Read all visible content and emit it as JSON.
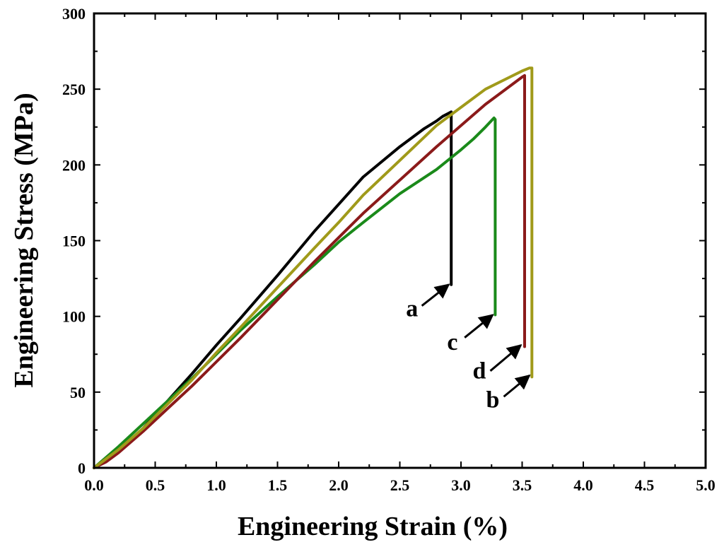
{
  "chart_data": {
    "type": "line",
    "title": "",
    "xlabel": "Engineering Strain (%)",
    "ylabel": "Engineering Stress (MPa)",
    "xlim": [
      0,
      5
    ],
    "ylim": [
      0,
      300
    ],
    "x_ticks": [
      0,
      0.5,
      1,
      1.5,
      2,
      2.5,
      3,
      3.5,
      4,
      4.5,
      5
    ],
    "x_tick_labels": [
      "0.0",
      "0.5",
      "1.0",
      "1.5",
      "2.0",
      "2.5",
      "3.0",
      "3.5",
      "4.0",
      "4.5",
      "5.0"
    ],
    "y_ticks": [
      0,
      50,
      100,
      150,
      200,
      250,
      300
    ],
    "y_tick_labels": [
      "0",
      "50",
      "100",
      "150",
      "200",
      "250",
      "300"
    ],
    "grid": false,
    "legend": "none",
    "series": [
      {
        "name": "a",
        "color": "#000000",
        "points": [
          [
            0,
            0
          ],
          [
            0.1,
            5
          ],
          [
            0.2,
            11
          ],
          [
            0.4,
            26
          ],
          [
            0.6,
            44
          ],
          [
            0.8,
            62
          ],
          [
            1.0,
            81
          ],
          [
            1.2,
            99
          ],
          [
            1.5,
            127
          ],
          [
            1.8,
            156
          ],
          [
            2.0,
            174
          ],
          [
            2.2,
            192
          ],
          [
            2.5,
            212
          ],
          [
            2.7,
            224
          ],
          [
            2.8,
            229
          ],
          [
            2.85,
            232
          ],
          [
            2.92,
            235
          ],
          [
            2.92,
            121
          ]
        ]
      },
      {
        "name": "c",
        "color": "#1a8a1a",
        "points": [
          [
            0,
            0
          ],
          [
            0.1,
            7
          ],
          [
            0.2,
            14
          ],
          [
            0.4,
            29
          ],
          [
            0.6,
            44
          ],
          [
            0.8,
            59
          ],
          [
            1.0,
            75
          ],
          [
            1.2,
            91
          ],
          [
            1.5,
            113
          ],
          [
            1.8,
            134
          ],
          [
            2.0,
            149
          ],
          [
            2.2,
            162
          ],
          [
            2.5,
            181
          ],
          [
            2.8,
            197
          ],
          [
            3.0,
            210
          ],
          [
            3.1,
            217
          ],
          [
            3.2,
            225
          ],
          [
            3.27,
            231
          ],
          [
            3.28,
            230
          ],
          [
            3.28,
            101
          ]
        ]
      },
      {
        "name": "d",
        "color": "#8b1a1a",
        "points": [
          [
            0,
            0
          ],
          [
            0.1,
            4
          ],
          [
            0.2,
            10
          ],
          [
            0.4,
            24
          ],
          [
            0.6,
            39
          ],
          [
            0.8,
            54
          ],
          [
            1.0,
            70
          ],
          [
            1.2,
            86
          ],
          [
            1.5,
            111
          ],
          [
            1.8,
            136
          ],
          [
            2.0,
            152
          ],
          [
            2.2,
            168
          ],
          [
            2.5,
            190
          ],
          [
            2.8,
            212
          ],
          [
            3.0,
            226
          ],
          [
            3.2,
            240
          ],
          [
            3.4,
            252
          ],
          [
            3.5,
            258
          ],
          [
            3.52,
            259
          ],
          [
            3.52,
            80
          ]
        ]
      },
      {
        "name": "b",
        "color": "#a09a1a",
        "points": [
          [
            0,
            0
          ],
          [
            0.1,
            6
          ],
          [
            0.2,
            12
          ],
          [
            0.4,
            26
          ],
          [
            0.6,
            42
          ],
          [
            0.8,
            58
          ],
          [
            1.0,
            76
          ],
          [
            1.2,
            93
          ],
          [
            1.5,
            119
          ],
          [
            1.8,
            145
          ],
          [
            2.0,
            162
          ],
          [
            2.2,
            180
          ],
          [
            2.5,
            203
          ],
          [
            2.8,
            226
          ],
          [
            3.0,
            238
          ],
          [
            3.2,
            250
          ],
          [
            3.4,
            258
          ],
          [
            3.5,
            262
          ],
          [
            3.56,
            264
          ],
          [
            3.58,
            264
          ],
          [
            3.58,
            60
          ]
        ]
      }
    ],
    "annotations": [
      {
        "label": "a",
        "label_at": [
          2.6,
          100
        ],
        "arrow_from": [
          2.68,
          107
        ],
        "arrow_to": [
          2.9,
          121
        ]
      },
      {
        "label": "c",
        "label_at": [
          2.93,
          78
        ],
        "arrow_from": [
          3.03,
          86
        ],
        "arrow_to": [
          3.26,
          101
        ]
      },
      {
        "label": "d",
        "label_at": [
          3.15,
          59
        ],
        "arrow_from": [
          3.24,
          64
        ],
        "arrow_to": [
          3.49,
          81
        ]
      },
      {
        "label": "b",
        "label_at": [
          3.26,
          40
        ],
        "arrow_from": [
          3.35,
          47
        ],
        "arrow_to": [
          3.56,
          61
        ]
      }
    ]
  }
}
